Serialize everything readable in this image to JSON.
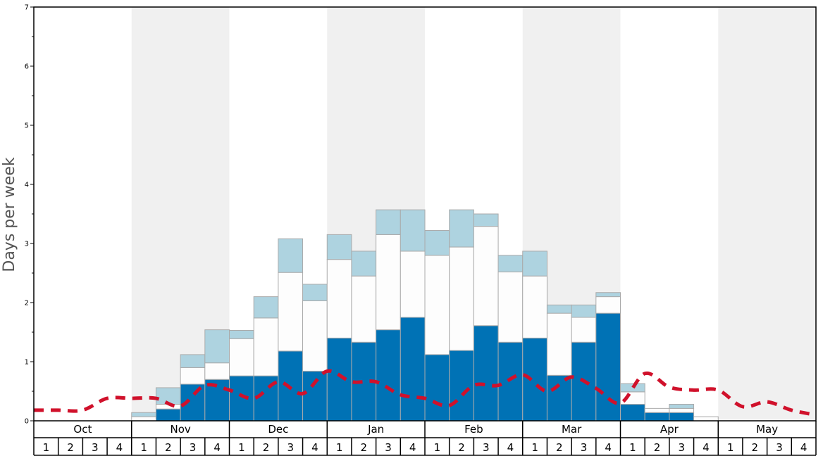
{
  "chart_data": {
    "type": "bar",
    "stacked": true,
    "ylabel": "Days per week",
    "ylim": [
      0,
      7
    ],
    "yticks": [
      0,
      1,
      2,
      3,
      4,
      5,
      6,
      7
    ],
    "months": [
      "Oct",
      "Nov",
      "Dec",
      "Jan",
      "Feb",
      "Mar",
      "Apr",
      "May"
    ],
    "weeks": [
      "1",
      "2",
      "3",
      "4"
    ],
    "shaded_months": [
      "Nov",
      "Jan",
      "Mar",
      "May"
    ],
    "colors": {
      "dark": "#0072b5",
      "middle": "#fdfdfd",
      "top": "#aed3e0",
      "line": "#d0112b",
      "shade": "#f0f0f0",
      "bar_stroke": "#aaaaaa"
    },
    "series": [
      {
        "color": "#0072b5",
        "values": [
          null,
          null,
          null,
          null,
          0,
          0.2,
          0.62,
          0.7,
          0.76,
          0.76,
          1.18,
          0.84,
          1.4,
          1.33,
          1.54,
          1.75,
          1.12,
          1.19,
          1.61,
          1.33,
          1.4,
          0.77,
          1.33,
          1.82,
          0.28,
          0.14,
          0.14,
          0,
          null,
          null,
          null,
          null
        ]
      },
      {
        "color": "#fdfdfd",
        "values": [
          null,
          null,
          null,
          null,
          0.07,
          0.08,
          0.28,
          0.28,
          0.63,
          0.98,
          1.33,
          1.19,
          1.33,
          1.12,
          1.61,
          1.12,
          1.68,
          1.75,
          1.68,
          1.19,
          1.05,
          1.05,
          0.42,
          0.28,
          0.21,
          0.07,
          0.07,
          0.07,
          null,
          null,
          null,
          null
        ]
      },
      {
        "color": "#aed3e0",
        "values": [
          null,
          null,
          null,
          null,
          0.07,
          0.28,
          0.22,
          0.56,
          0.14,
          0.36,
          0.57,
          0.28,
          0.42,
          0.42,
          0.42,
          0.7,
          0.42,
          0.63,
          0.21,
          0.28,
          0.42,
          0.14,
          0.21,
          0.07,
          0.14,
          0,
          0.07,
          0,
          null,
          null,
          null,
          null
        ]
      },
      {
        "type": "line",
        "style": "dashed",
        "color": "#d0112b",
        "values": [
          0.18,
          0.18,
          0.18,
          0.38,
          0.38,
          0.38,
          0.25,
          0.6,
          0.52,
          0.38,
          0.66,
          0.46,
          0.84,
          0.66,
          0.66,
          0.44,
          0.38,
          0.26,
          0.6,
          0.6,
          0.78,
          0.5,
          0.74,
          0.55,
          0.3,
          0.8,
          0.57,
          0.52,
          0.52,
          0.24,
          0.32,
          0.18,
          0.1
        ]
      }
    ]
  }
}
